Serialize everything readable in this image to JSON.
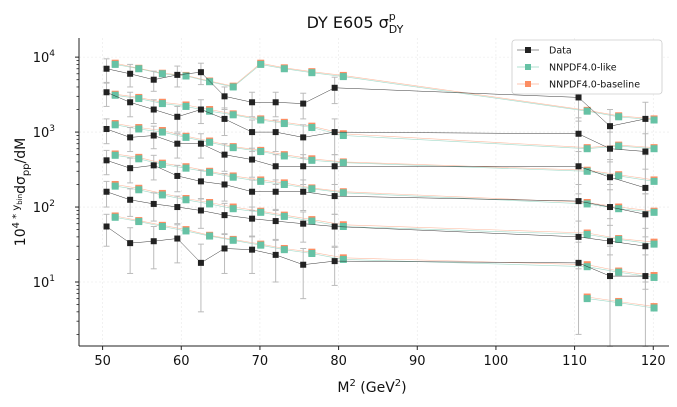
{
  "chart_data": {
    "type": "line",
    "title_main": "DY E605 σ",
    "title_sup": "p",
    "title_sub": "DY",
    "xlabel_main": "M",
    "xlabel_sup": "2",
    "xlabel_rest": " (GeV",
    "xlabel_sup2": "2",
    "xlabel_end": ")",
    "ylabel_a": "10",
    "ylabel_sup": "4 * y",
    "ylabel_supsub": "bin",
    "ylabel_b": "dσ",
    "ylabel_sub": "pp",
    "ylabel_c": "/dM",
    "xlim": [
      47,
      122
    ],
    "ylim": [
      1.4,
      18000
    ],
    "yscale": "log",
    "xticks": [
      "50",
      "60",
      "70",
      "80",
      "90",
      "100",
      "110",
      "120"
    ],
    "yticks": [
      {
        "base": "10",
        "exp": "1"
      },
      {
        "base": "10",
        "exp": "2"
      },
      {
        "base": "10",
        "exp": "3"
      },
      {
        "base": "10",
        "exp": "4"
      }
    ],
    "grid": true,
    "legend_position": "top-right",
    "x": [
      50.5,
      53.5,
      56.5,
      59.5,
      62.5,
      65.5,
      69,
      72,
      75.5,
      79.5,
      110.5,
      114.5,
      119
    ],
    "series": [
      {
        "name": "Data",
        "color": "#222222",
        "marker": "square",
        "groups": [
          {
            "values": [
              7000,
              6000,
              5000,
              5800,
              6300,
              3000,
              2500,
              2500,
              2400,
              3900,
              2900,
              1200,
              1500
            ],
            "errors": [
              2500,
              2000,
              1500,
              1800,
              2000,
              1000,
              900,
              900,
              900,
              1500,
              1500,
              800,
              1000
            ]
          },
          {
            "values": [
              3400,
              2500,
              2000,
              1600,
              2000,
              1500,
              1000,
              1000,
              850,
              1000,
              950,
              600,
              550
            ],
            "errors": [
              1200,
              900,
              700,
              600,
              700,
              600,
              450,
              450,
              400,
              500,
              600,
              400,
              400
            ]
          },
          {
            "values": [
              1100,
              850,
              900,
              700,
              700,
              500,
              430,
              350,
              350,
              350,
              350,
              250,
              180
            ],
            "errors": [
              400,
              300,
              300,
              250,
              250,
              200,
              180,
              150,
              150,
              150,
              200,
              180,
              140
            ]
          },
          {
            "values": [
              420,
              330,
              360,
              260,
              220,
              200,
              160,
              160,
              160,
              140,
              120,
              100,
              80
            ],
            "errors": [
              150,
              120,
              130,
              100,
              90,
              80,
              70,
              70,
              70,
              60,
              80,
              70,
              70
            ]
          },
          {
            "values": [
              160,
              125,
              110,
              100,
              90,
              78,
              70,
              65,
              60,
              55,
              40,
              35,
              30
            ],
            "errors": [
              60,
              50,
              45,
              40,
              38,
              34,
              30,
              28,
              26,
              25,
              25,
              22,
              22
            ]
          },
          {
            "values": [
              55,
              33,
              35,
              38,
              18,
              28,
              27,
              23,
              17,
              19,
              18,
              12,
              12
            ],
            "errors": [
              25,
              20,
              20,
              20,
              14,
              15,
              14,
              13,
              11,
              10,
              16,
              11,
              11
            ]
          }
        ]
      },
      {
        "name": "NNPDF4.0-like",
        "color": "#66c2a5",
        "marker": "square",
        "groups": [
          {
            "values": [
              8000,
              7000,
              6000,
              5600,
              4700,
              4000,
              8000,
              7000,
              6200,
              5500,
              1900,
              1600,
              1450
            ]
          },
          {
            "values": [
              3100,
              2800,
              2400,
              2200,
              1900,
              1700,
              1450,
              1300,
              1150,
              900,
              600,
              650,
              600
            ]
          },
          {
            "values": [
              1250,
              1100,
              1000,
              850,
              730,
              620,
              550,
              480,
              420,
              390,
              300,
              260,
              220
            ]
          },
          {
            "values": [
              490,
              440,
              370,
              330,
              290,
              250,
              220,
              200,
              175,
              155,
              110,
              95,
              85
            ]
          },
          {
            "values": [
              190,
              170,
              145,
              125,
              110,
              95,
              85,
              75,
              65,
              55,
              43,
              37,
              32
            ]
          },
          {
            "values": [
              73,
              64,
              55,
              48,
              41,
              36,
              31,
              27,
              24,
              20,
              16,
              13.5,
              11.5
            ]
          },
          {
            "values": [
              null,
              null,
              null,
              null,
              null,
              null,
              null,
              null,
              null,
              null,
              6.0,
              5.3,
              4.5
            ]
          }
        ]
      },
      {
        "name": "NNPDF4.0-baseline",
        "color": "#fc8d62",
        "marker": "square",
        "groups": [
          {
            "values": [
              8300,
              7100,
              6100,
              5700,
              4800,
              4100,
              8300,
              7200,
              6400,
              5700,
              1950,
              1650,
              1500
            ]
          },
          {
            "values": [
              3200,
              2900,
              2500,
              2300,
              2000,
              1750,
              1500,
              1350,
              1200,
              950,
              620,
              670,
              620
            ]
          },
          {
            "values": [
              1300,
              1150,
              1050,
              880,
              760,
              640,
              570,
              500,
              440,
              400,
              310,
              270,
              230
            ]
          },
          {
            "values": [
              510,
              460,
              385,
              345,
              300,
              260,
              230,
              210,
              180,
              160,
              115,
              100,
              88
            ]
          },
          {
            "values": [
              200,
              178,
              152,
              130,
              115,
              100,
              88,
              78,
              68,
              58,
              45,
              38,
              34
            ]
          },
          {
            "values": [
              76,
              66,
              57,
              50,
              42,
              37,
              32,
              28,
              25,
              21,
              17,
              14,
              12.2
            ]
          },
          {
            "values": [
              null,
              null,
              null,
              null,
              null,
              null,
              null,
              null,
              null,
              null,
              6.3,
              5.5,
              4.7
            ]
          }
        ]
      }
    ]
  }
}
